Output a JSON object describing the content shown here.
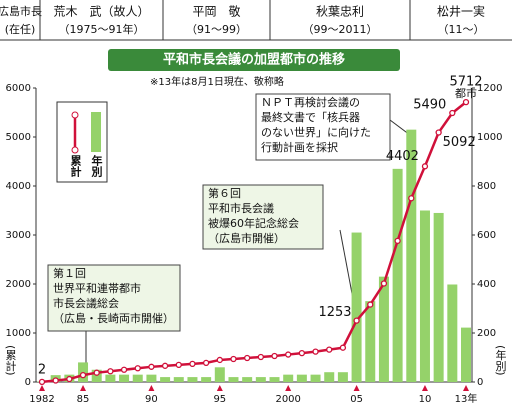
{
  "chart_data": {
    "type": "bar_line",
    "title": "平和市長会議の加盟都市の推移",
    "note": "※13年は8月1日現在、敬称略",
    "header": {
      "label": "広島市長",
      "sublabel": "(在任)",
      "mayors": [
        {
          "name": "荒木　武（故人）",
          "term": "（1975～91年）"
        },
        {
          "name": "平岡　敬",
          "term": "（91～99）"
        },
        {
          "name": "秋葉忠利",
          "term": "（99～2011）"
        },
        {
          "name": "松井一実",
          "term": "（11～）"
        }
      ]
    },
    "annotations": [
      {
        "lines": [
          "第１回",
          "世界平和連帯都市",
          "市長会議総会",
          "（広島・長崎両市開催）"
        ]
      },
      {
        "lines": [
          "第６回",
          "平和市長会議",
          "被爆60年記念総会",
          "（広島市開催）"
        ]
      },
      {
        "lines": [
          "ＮＰＴ再検討会議の",
          "最終文書で「核兵器",
          "のない世界」に向けた",
          "行動計画を採択"
        ]
      }
    ],
    "x": [
      1982,
      1983,
      1984,
      1985,
      1986,
      1987,
      1988,
      1989,
      1990,
      1991,
      1992,
      1993,
      1994,
      1995,
      1996,
      1997,
      1998,
      1999,
      2000,
      2001,
      2002,
      2003,
      2004,
      2005,
      2006,
      2007,
      2008,
      2009,
      2010,
      2011,
      2012,
      2013
    ],
    "xlim": [
      1982,
      2013
    ],
    "xticks": [
      {
        "value": 1982,
        "label": "1982"
      },
      {
        "value": 1985,
        "label": "85"
      },
      {
        "value": 1990,
        "label": "90"
      },
      {
        "value": 1995,
        "label": "95"
      },
      {
        "value": 2000,
        "label": "2000"
      },
      {
        "value": 2005,
        "label": "05"
      },
      {
        "value": 2010,
        "label": "10"
      },
      {
        "value": 2013,
        "label": "13年"
      }
    ],
    "series": [
      {
        "name": "累計",
        "color": "#d0103a",
        "axis": "y",
        "values": [
          2,
          30,
          60,
          140,
          190,
          220,
          250,
          280,
          310,
          330,
          350,
          370,
          390,
          450,
          470,
          490,
          510,
          530,
          560,
          590,
          620,
          660,
          700,
          1253,
          1580,
          2010,
          2880,
          3750,
          4402,
          5092,
          5490,
          5712
        ]
      },
      {
        "name": "年別",
        "color": "#95d26a",
        "axis": "y2",
        "values": [
          2,
          28,
          30,
          80,
          50,
          30,
          30,
          30,
          30,
          20,
          20,
          20,
          20,
          60,
          20,
          20,
          20,
          20,
          30,
          30,
          30,
          40,
          40,
          610,
          330,
          430,
          870,
          1030,
          700,
          690,
          398,
          222
        ]
      }
    ],
    "labeled_x": [
      1982,
      2005,
      2010,
      2011,
      2012,
      2013
    ],
    "unit_label": "都市",
    "ylabel": "(累計)",
    "y2label": "(年別)",
    "ylim": [
      0,
      6000
    ],
    "yticks": [
      0,
      1000,
      2000,
      3000,
      4000,
      5000,
      6000
    ],
    "y2lim": [
      0,
      1200
    ],
    "y2ticks": [
      0,
      200,
      400,
      600,
      800,
      1000,
      1200
    ]
  }
}
